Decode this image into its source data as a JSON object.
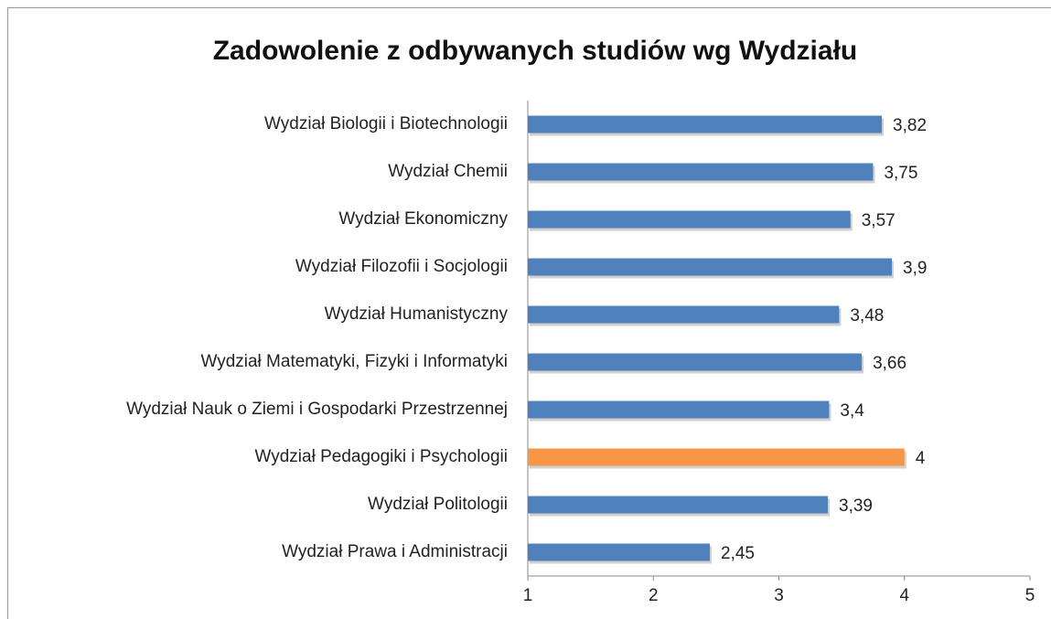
{
  "chart_data": {
    "type": "bar",
    "orientation": "horizontal",
    "title": "Zadowolenie z odbywanych studiów wg Wydziału",
    "categories": [
      "Wydział Biologii i Biotechnologii",
      "Wydział Chemii",
      "Wydział Ekonomiczny",
      "Wydział Filozofii i Socjologii",
      "Wydział Humanistyczny",
      "Wydział Matematyki, Fizyki i Informatyki",
      "Wydział Nauk o Ziemi i Gospodarki Przestrzennej",
      "Wydział Pedagogiki i Psychologii",
      "Wydział Politologii",
      "Wydział Prawa i Administracji"
    ],
    "values": [
      3.82,
      3.75,
      3.57,
      3.9,
      3.48,
      3.66,
      3.4,
      4,
      3.39,
      2.45
    ],
    "value_labels": [
      "3,82",
      "3,75",
      "3,57",
      "3,9",
      "3,48",
      "3,66",
      "3,4",
      "4",
      "3,39",
      "2,45"
    ],
    "colors": [
      "#4f81bd",
      "#4f81bd",
      "#4f81bd",
      "#4f81bd",
      "#4f81bd",
      "#4f81bd",
      "#4f81bd",
      "#f79646",
      "#4f81bd",
      "#4f81bd"
    ],
    "xlim": [
      1,
      5
    ],
    "xticks": [
      1,
      2,
      3,
      4,
      5
    ],
    "grid": false
  }
}
